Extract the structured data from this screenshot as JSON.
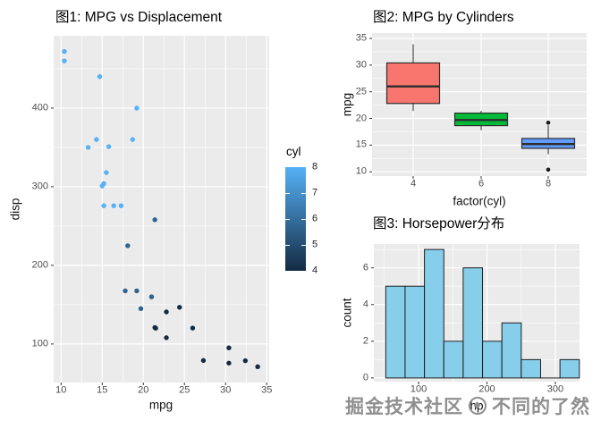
{
  "figure": {
    "background": "#ffffff",
    "panel_background": "#ebebeb",
    "grid_color": "#ffffff",
    "axis_text_color": "#4d4d4d",
    "tick_mark_color": "#333333"
  },
  "watermark": {
    "prefix": "掘金技术社区",
    "suffix": "不同的了然",
    "logo": "juejin-circle-logo",
    "color": "#8f8f8f"
  },
  "chart_data": [
    {
      "id": "plot1",
      "type": "scatter",
      "title": "图1: MPG vs Displacement",
      "xlabel": "mpg",
      "ylabel": "disp",
      "x_ticks": [
        10,
        15,
        20,
        25,
        30,
        35
      ],
      "y_ticks": [
        100,
        200,
        300,
        400
      ],
      "x_minor": [
        12.5,
        17.5,
        22.5,
        27.5,
        32.5
      ],
      "y_minor": [
        150,
        250,
        350,
        450
      ],
      "xlim": [
        9.1,
        35.3
      ],
      "ylim": [
        51,
        492
      ],
      "grid": true,
      "legend": {
        "title": "cyl",
        "position": "right",
        "labels": [
          8,
          7,
          6,
          5,
          4
        ],
        "tick_values": [
          7,
          6,
          5
        ],
        "domain": [
          4,
          8
        ],
        "low_color": "#132B43",
        "high_color": "#56B1F7"
      },
      "point_colors_by_cyl": {
        "4": "#132B43",
        "6": "#2F6390",
        "8": "#56B1F7"
      },
      "points": [
        {
          "mpg": 21.0,
          "disp": 160.0,
          "cyl": 6
        },
        {
          "mpg": 21.0,
          "disp": 160.0,
          "cyl": 6
        },
        {
          "mpg": 22.8,
          "disp": 108.0,
          "cyl": 4
        },
        {
          "mpg": 21.4,
          "disp": 258.0,
          "cyl": 6
        },
        {
          "mpg": 18.7,
          "disp": 360.0,
          "cyl": 8
        },
        {
          "mpg": 18.1,
          "disp": 225.0,
          "cyl": 6
        },
        {
          "mpg": 14.3,
          "disp": 360.0,
          "cyl": 8
        },
        {
          "mpg": 24.4,
          "disp": 146.7,
          "cyl": 4
        },
        {
          "mpg": 22.8,
          "disp": 140.8,
          "cyl": 4
        },
        {
          "mpg": 19.2,
          "disp": 167.6,
          "cyl": 6
        },
        {
          "mpg": 17.8,
          "disp": 167.6,
          "cyl": 6
        },
        {
          "mpg": 16.4,
          "disp": 275.8,
          "cyl": 8
        },
        {
          "mpg": 17.3,
          "disp": 275.8,
          "cyl": 8
        },
        {
          "mpg": 15.2,
          "disp": 275.8,
          "cyl": 8
        },
        {
          "mpg": 10.4,
          "disp": 472.0,
          "cyl": 8
        },
        {
          "mpg": 10.4,
          "disp": 460.0,
          "cyl": 8
        },
        {
          "mpg": 14.7,
          "disp": 440.0,
          "cyl": 8
        },
        {
          "mpg": 32.4,
          "disp": 78.7,
          "cyl": 4
        },
        {
          "mpg": 30.4,
          "disp": 75.7,
          "cyl": 4
        },
        {
          "mpg": 33.9,
          "disp": 71.1,
          "cyl": 4
        },
        {
          "mpg": 21.5,
          "disp": 120.1,
          "cyl": 4
        },
        {
          "mpg": 15.5,
          "disp": 318.0,
          "cyl": 8
        },
        {
          "mpg": 15.2,
          "disp": 304.0,
          "cyl": 8
        },
        {
          "mpg": 13.3,
          "disp": 350.0,
          "cyl": 8
        },
        {
          "mpg": 19.2,
          "disp": 400.0,
          "cyl": 8
        },
        {
          "mpg": 27.3,
          "disp": 79.0,
          "cyl": 4
        },
        {
          "mpg": 26.0,
          "disp": 120.3,
          "cyl": 4
        },
        {
          "mpg": 30.4,
          "disp": 95.1,
          "cyl": 4
        },
        {
          "mpg": 15.8,
          "disp": 351.0,
          "cyl": 8
        },
        {
          "mpg": 19.7,
          "disp": 145.0,
          "cyl": 6
        },
        {
          "mpg": 15.0,
          "disp": 301.0,
          "cyl": 8
        },
        {
          "mpg": 21.4,
          "disp": 121.0,
          "cyl": 4
        }
      ]
    },
    {
      "id": "plot2",
      "type": "box",
      "title": "图2: MPG by Cylinders",
      "xlabel": "factor(cyl)",
      "ylabel": "mpg",
      "categories": [
        "4",
        "6",
        "8"
      ],
      "y_ticks": [
        10,
        15,
        20,
        25,
        30,
        35
      ],
      "y_minor": [
        12.5,
        17.5,
        22.5,
        27.5,
        32.5
      ],
      "ylim": [
        9.2,
        36.0
      ],
      "grid": true,
      "boxes": [
        {
          "category": "4",
          "fill": "#F8766D",
          "whisker_low": 21.4,
          "q1": 22.8,
          "median": 26.0,
          "q3": 30.4,
          "whisker_high": 33.9,
          "outliers": []
        },
        {
          "category": "6",
          "fill": "#00BA38",
          "whisker_low": 17.8,
          "q1": 18.65,
          "median": 19.7,
          "q3": 21.0,
          "whisker_high": 21.4,
          "outliers": []
        },
        {
          "category": "8",
          "fill": "#619CFF",
          "whisker_low": 13.3,
          "q1": 14.4,
          "median": 15.2,
          "q3": 16.25,
          "whisker_high": 18.7,
          "outliers": [
            19.2,
            10.4
          ]
        }
      ]
    },
    {
      "id": "plot3",
      "type": "histogram",
      "title": "图3: Horsepower分布",
      "xlabel": "hp",
      "ylabel": "count",
      "x_ticks": [
        100,
        200,
        300
      ],
      "x_minor": [
        50,
        150,
        250
      ],
      "y_ticks": [
        0,
        2,
        4,
        6
      ],
      "y_minor": [
        1,
        3,
        5,
        7
      ],
      "bin_start": 52,
      "bin_width": 28.3,
      "counts": [
        5,
        5,
        7,
        2,
        6,
        2,
        3,
        1,
        0,
        1
      ],
      "bar_fill": "#87CEEB",
      "bar_border": "#1f1f1f",
      "xlim": [
        34.6,
        335.3
      ],
      "ylim": [
        -0.2,
        7.3
      ],
      "grid": true
    }
  ]
}
